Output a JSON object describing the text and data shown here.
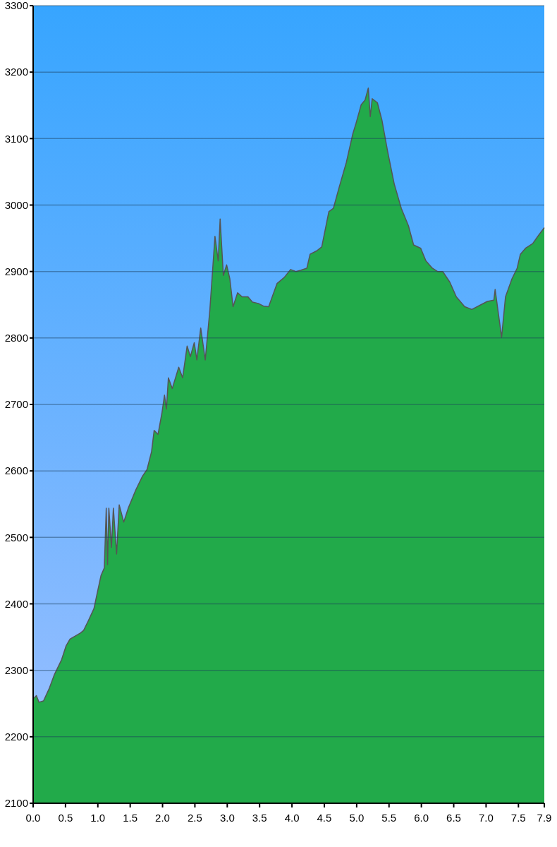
{
  "chart_data": {
    "type": "area",
    "xlim": [
      0,
      7.9
    ],
    "ylim": [
      2100,
      3300
    ],
    "xticks": [
      {
        "value": 0,
        "label": "0.0"
      },
      {
        "value": 0.5,
        "label": "0.5"
      },
      {
        "value": 1,
        "label": "1.0"
      },
      {
        "value": 1.5,
        "label": "1.5"
      },
      {
        "value": 2,
        "label": "2.0"
      },
      {
        "value": 2.5,
        "label": "2.5"
      },
      {
        "value": 3,
        "label": "3.0"
      },
      {
        "value": 3.5,
        "label": "3.5"
      },
      {
        "value": 4,
        "label": "4.0"
      },
      {
        "value": 4.5,
        "label": "4.5"
      },
      {
        "value": 5,
        "label": "5.0"
      },
      {
        "value": 5.5,
        "label": "5.5"
      },
      {
        "value": 6,
        "label": "6.0"
      },
      {
        "value": 6.5,
        "label": "6.5"
      },
      {
        "value": 7,
        "label": "7.0"
      },
      {
        "value": 7.5,
        "label": "7.5"
      },
      {
        "value": 7.9,
        "label": "7.9"
      }
    ],
    "yticks": [
      2100,
      2200,
      2300,
      2400,
      2500,
      2600,
      2700,
      2800,
      2900,
      3000,
      3100,
      3200,
      3300
    ],
    "grid": "y",
    "series": [
      {
        "color": "#22aa4a",
        "x": [
          0,
          0.05,
          0.09,
          0.16,
          0.25,
          0.33,
          0.44,
          0.51,
          0.57,
          0.73,
          0.78,
          0.85,
          0.94,
          0.99,
          1.05,
          1.1,
          1.13,
          1.15,
          1.17,
          1.21,
          1.24,
          1.29,
          1.33,
          1.4,
          1.47,
          1.58,
          1.69,
          1.76,
          1.83,
          1.87,
          1.93,
          1.99,
          2.03,
          2.06,
          2.09,
          2.15,
          2.25,
          2.31,
          2.38,
          2.43,
          2.49,
          2.53,
          2.59,
          2.66,
          2.73,
          2.81,
          2.86,
          2.89,
          2.94,
          2.99,
          3.04,
          3.09,
          3.16,
          3.23,
          3.32,
          3.39,
          3.48,
          3.56,
          3.64,
          3.77,
          3.88,
          3.98,
          4.06,
          4.14,
          4.23,
          4.28,
          4.38,
          4.46,
          4.57,
          4.64,
          4.73,
          4.84,
          4.94,
          4.99,
          5.07,
          5.13,
          5.18,
          5.21,
          5.24,
          5.32,
          5.39,
          5.48,
          5.58,
          5.69,
          5.8,
          5.88,
          5.99,
          6.07,
          6.17,
          6.25,
          6.33,
          6.44,
          6.54,
          6.67,
          6.78,
          6.92,
          7.02,
          7.12,
          7.14,
          7.24,
          7.3,
          7.4,
          7.48,
          7.53,
          7.61,
          7.72,
          7.8,
          7.9
        ],
        "values": [
          2257,
          2262,
          2252,
          2254,
          2273,
          2294,
          2316,
          2337,
          2347,
          2356,
          2360,
          2374,
          2393,
          2416,
          2443,
          2454,
          2544,
          2459,
          2544,
          2485,
          2544,
          2475,
          2549,
          2523,
          2544,
          2570,
          2592,
          2602,
          2629,
          2661,
          2655,
          2687,
          2714,
          2693,
          2740,
          2724,
          2756,
          2740,
          2788,
          2772,
          2793,
          2767,
          2815,
          2767,
          2841,
          2953,
          2916,
          2979,
          2894,
          2910,
          2889,
          2847,
          2868,
          2862,
          2862,
          2854,
          2852,
          2848,
          2847,
          2882,
          2891,
          2903,
          2900,
          2902,
          2905,
          2926,
          2931,
          2937,
          2990,
          2995,
          3027,
          3064,
          3107,
          3123,
          3151,
          3158,
          3176,
          3133,
          3160,
          3154,
          3128,
          3080,
          3032,
          2995,
          2969,
          2940,
          2935,
          2916,
          2905,
          2900,
          2900,
          2884,
          2862,
          2847,
          2843,
          2850,
          2855,
          2857,
          2873,
          2801,
          2862,
          2889,
          2905,
          2926,
          2935,
          2942,
          2953,
          2966
        ]
      }
    ]
  }
}
